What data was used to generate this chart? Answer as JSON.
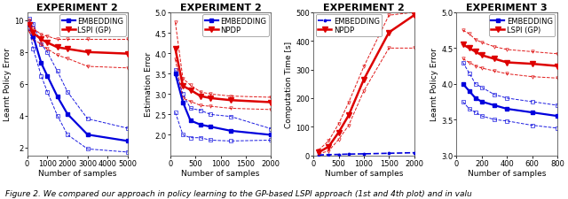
{
  "plot1": {
    "title": "EXPERIMENT 2",
    "ylabel": "Learnt Policy Error",
    "xlabel": "Number of samples",
    "xlim": [
      0,
      5000
    ],
    "ylim": [
      1.5,
      10.5
    ],
    "xticks": [
      0,
      1000,
      2000,
      3000,
      4000,
      5000
    ],
    "yticks": [
      2,
      4,
      6,
      8,
      10
    ],
    "embed_x": [
      100,
      300,
      700,
      1000,
      1500,
      2000,
      3000,
      5000
    ],
    "embed_y": [
      9.8,
      9.0,
      7.3,
      6.5,
      5.2,
      4.1,
      2.8,
      2.4
    ],
    "embed_upper": [
      10.1,
      9.8,
      8.5,
      8.0,
      6.8,
      5.5,
      3.8,
      3.2
    ],
    "embed_lower": [
      9.5,
      8.2,
      6.5,
      5.5,
      4.0,
      2.8,
      1.9,
      1.7
    ],
    "lspi_x": [
      100,
      300,
      700,
      1000,
      1500,
      2000,
      3000,
      5000
    ],
    "lspi_y": [
      9.7,
      9.2,
      8.8,
      8.6,
      8.3,
      8.2,
      8.0,
      7.9
    ],
    "lspi_upper": [
      10.0,
      9.5,
      9.1,
      9.0,
      8.8,
      8.8,
      8.8,
      8.8
    ],
    "lspi_lower": [
      9.3,
      8.8,
      8.5,
      8.2,
      7.8,
      7.6,
      7.1,
      7.0
    ],
    "embed_label": "EMBEDDING",
    "lspi_label": "LSPI (GP)",
    "embed_color": "#0000dd",
    "lspi_color": "#dd0000"
  },
  "plot2": {
    "title": "EXPERIMENT 2",
    "ylabel": "Estimation Error",
    "xlabel": "Number of samples",
    "xlim": [
      0,
      2000
    ],
    "ylim": [
      1.5,
      5.0
    ],
    "xticks": [
      0,
      500,
      1000,
      1500,
      2000
    ],
    "yticks": [
      2.0,
      2.5,
      3.0,
      3.5,
      4.0,
      4.5,
      5.0
    ],
    "embed_x": [
      100,
      250,
      400,
      600,
      800,
      1200,
      2000
    ],
    "embed_y": [
      3.5,
      2.8,
      2.35,
      2.25,
      2.2,
      2.1,
      2.0
    ],
    "embed_upper": [
      3.6,
      3.0,
      2.65,
      2.6,
      2.5,
      2.45,
      2.15
    ],
    "embed_lower": [
      2.55,
      2.0,
      1.93,
      1.93,
      1.87,
      1.85,
      1.87
    ],
    "npdp_x": [
      100,
      250,
      400,
      600,
      800,
      1200,
      2000
    ],
    "npdp_y": [
      4.1,
      3.2,
      3.1,
      2.95,
      2.9,
      2.85,
      2.8
    ],
    "npdp_upper": [
      4.75,
      3.38,
      3.22,
      3.05,
      3.0,
      2.95,
      2.92
    ],
    "npdp_lower": [
      3.85,
      2.9,
      2.82,
      2.72,
      2.7,
      2.65,
      2.62
    ],
    "embed_label": "EMBEDDING",
    "npdp_label": "NPDP",
    "embed_color": "#0000dd",
    "npdp_color": "#dd0000"
  },
  "plot3": {
    "title": "EXPERIMENT 2",
    "ylabel": "Computation Time [s]",
    "xlabel": "Number of samples",
    "xlim": [
      0,
      2000
    ],
    "ylim": [
      0,
      500
    ],
    "xticks": [
      0,
      500,
      1000,
      1500,
      2000
    ],
    "yticks": [
      0,
      100,
      200,
      300,
      400,
      500
    ],
    "embed_x": [
      100,
      300,
      500,
      700,
      1000,
      1500,
      2000
    ],
    "embed_y": [
      1,
      2,
      3,
      4,
      5,
      7,
      9
    ],
    "embed_upper": [
      2,
      3,
      4,
      5,
      6,
      8,
      11
    ],
    "embed_lower": [
      0.5,
      1,
      2,
      3,
      4,
      6,
      7
    ],
    "npdp_x": [
      100,
      300,
      500,
      700,
      1000,
      1500,
      2000
    ],
    "npdp_y": [
      10,
      30,
      80,
      140,
      265,
      430,
      490
    ],
    "npdp_upper": [
      18,
      50,
      110,
      185,
      310,
      490,
      500
    ],
    "npdp_lower": [
      5,
      15,
      55,
      105,
      225,
      375,
      375
    ],
    "embed_label": "EMBEDDING",
    "npdp_label": "NPDP",
    "embed_color": "#0000dd",
    "npdp_color": "#dd0000"
  },
  "plot4": {
    "title": "EXPERIMENT 3",
    "ylabel": "Learnt Policy Error",
    "xlabel": "Number of samples",
    "xlim": [
      0,
      800
    ],
    "ylim": [
      3.0,
      5.0
    ],
    "xticks": [
      0,
      200,
      400,
      600,
      800
    ],
    "yticks": [
      3.0,
      3.5,
      4.0,
      4.5,
      5.0
    ],
    "embed_x": [
      50,
      100,
      150,
      200,
      300,
      400,
      600,
      800
    ],
    "embed_y": [
      4.0,
      3.9,
      3.8,
      3.75,
      3.7,
      3.65,
      3.6,
      3.55
    ],
    "embed_upper": [
      4.3,
      4.15,
      4.0,
      3.95,
      3.85,
      3.8,
      3.75,
      3.7
    ],
    "embed_lower": [
      3.75,
      3.65,
      3.6,
      3.55,
      3.5,
      3.48,
      3.42,
      3.38
    ],
    "lspi_x": [
      50,
      100,
      150,
      200,
      300,
      400,
      600,
      800
    ],
    "lspi_y": [
      4.55,
      4.5,
      4.45,
      4.4,
      4.35,
      4.3,
      4.28,
      4.25
    ],
    "lspi_upper": [
      4.75,
      4.7,
      4.62,
      4.58,
      4.52,
      4.48,
      4.45,
      4.42
    ],
    "lspi_lower": [
      4.35,
      4.3,
      4.25,
      4.22,
      4.18,
      4.14,
      4.1,
      4.08
    ],
    "embed_label": "EMBEDDING",
    "lspi_label": "LSPI (GP)",
    "embed_color": "#0000dd",
    "lspi_color": "#dd0000"
  },
  "caption": "Figure 2. We compared our approach in policy learning to the GP-based LSPI approach (1st and 4th plot) and in valu",
  "bg_color": "#ffffff",
  "title_fontsize": 8,
  "label_fontsize": 6.5,
  "tick_fontsize": 6,
  "legend_fontsize": 6,
  "caption_fontsize": 6.5
}
